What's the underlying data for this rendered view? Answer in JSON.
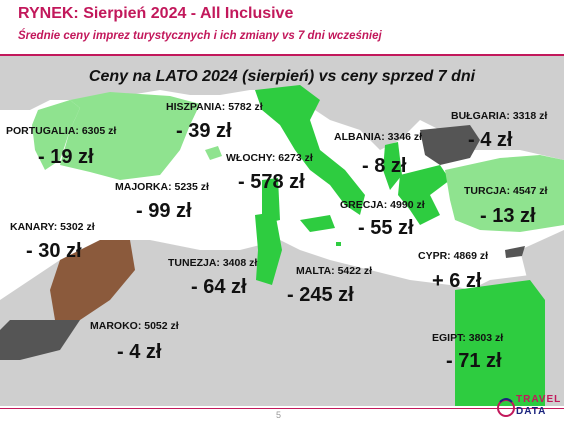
{
  "header": {
    "title": "RYNEK: Sierpień 2024 - All Inclusive",
    "subtitle": "Średnie ceny imprez turystycznych i ich zmiany vs 7 dni wcześniej"
  },
  "map": {
    "title": "Ceny na LATO 2024 (sierpień) vs ceny sprzed 7 dni",
    "colors": {
      "sea": "#ffffff",
      "land": "#cfcfcf",
      "green": "#2ecc40",
      "light_green": "#8fe38f",
      "dark": "#555555",
      "brown": "#8b5a3c"
    },
    "countries": [
      {
        "label": "HISZPANIA: 5782 zł",
        "change": "- 39 zł"
      },
      {
        "label": "PORTUGALIA: 6305 zł",
        "change": "- 19 zł"
      },
      {
        "label": "WŁOCHY: 6273 zł",
        "change": "- 578 zł"
      },
      {
        "label": "ALBANIA: 3346 zł",
        "change": "- 8 zł"
      },
      {
        "label": "BUŁGARIA: 3318 zł",
        "change": "- 4 zł"
      },
      {
        "label": "MAJORKA: 5235 zł",
        "change": "- 99 zł"
      },
      {
        "label": "TURCJA: 4547 zł",
        "change": "- 13 zł"
      },
      {
        "label": "KANARY: 5302 zł",
        "change": "- 30 zł"
      },
      {
        "label": "GRECJA: 4990 zł",
        "change": "- 55 zł"
      },
      {
        "label": "TUNEZJA: 3408 zł",
        "change": "- 64 zł"
      },
      {
        "label": "MALTA: 5422 zł",
        "change": "- 245 zł"
      },
      {
        "label": "CYPR: 4869 zł",
        "change": "+ 6 zł"
      },
      {
        "label": "MAROKO: 5052 zł",
        "change": "- 4 zł"
      },
      {
        "label": "EGIPT: 3803 zł",
        "change": "- 71 zł"
      }
    ]
  },
  "footer": {
    "page_number": "5",
    "logo_top": "TRAVEL",
    "logo_bottom": "DATA"
  }
}
